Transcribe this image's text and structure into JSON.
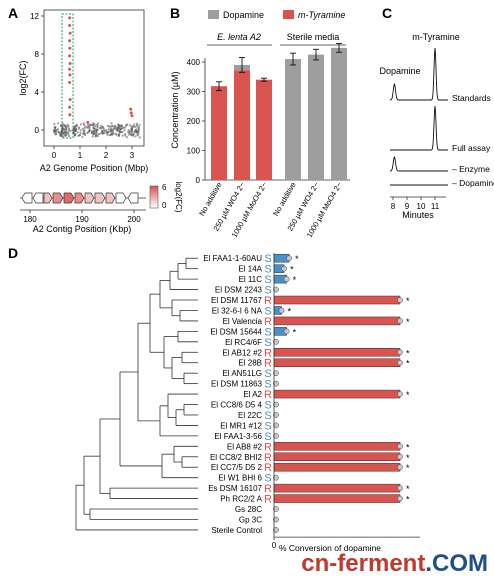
{
  "panels": {
    "a": "A",
    "b": "B",
    "c": "C",
    "d": "D"
  },
  "panel_a": {
    "ylabel": "log2(FC)",
    "xlabel": "A2 Genome Position (Mbp)",
    "yticks": [
      "0",
      "4",
      "8",
      "12"
    ],
    "xticks": [
      "0",
      "1",
      "2",
      "3"
    ],
    "contig_xlabel": "A2 Contig Position (Kbp)",
    "contig_xticks": [
      "180",
      "190",
      "200"
    ],
    "colorbar_label": "log2(FC)",
    "colorbar_ticks": [
      "0",
      "6"
    ],
    "colors": {
      "hit": "#d9534f",
      "background": "#555555",
      "highlight_box": "#3cb371"
    }
  },
  "panel_b": {
    "legend": [
      "Dopamine",
      "m-Tyramine"
    ],
    "group_labels": [
      "E. lenta A2",
      "Sterile media"
    ],
    "ylabel": "Concentration (µM)",
    "colors": {
      "dopamine": "#9e9e9e",
      "mtyramine": "#d9534f"
    },
    "chart_data": {
      "type": "bar",
      "categories": [
        "No additive",
        "250 µM WO4 2−",
        "1000 µM MoO4 2−",
        "No additive",
        "250 µM WO4 2−",
        "1000 µM MoO4 2−"
      ],
      "series": [
        {
          "name": "Dopamine",
          "values": [
            0,
            18,
            0,
            410,
            425,
            448
          ]
        },
        {
          "name": "m-Tyramine",
          "values": [
            318,
            372,
            340,
            0,
            0,
            0
          ]
        }
      ],
      "errors": [
        15,
        25,
        5,
        20,
        18,
        15
      ],
      "ylim": [
        0,
        400
      ],
      "yticks": [
        0,
        100,
        200,
        300,
        400
      ]
    }
  },
  "panel_c": {
    "peak_labels": [
      "Dopamine",
      "m-Tyramine"
    ],
    "traces": [
      "Standards",
      "Full assay",
      "– Enzyme",
      "– Dopamine"
    ],
    "xlabel": "Minutes",
    "xticks": [
      "8",
      "9",
      "10",
      "11"
    ]
  },
  "panel_d": {
    "xlabel": "% Conversion of dopamine",
    "xtick_zero": "0",
    "colors": {
      "R": "#d9534f",
      "S": "#4a90c8",
      "bar_R": "#d9534f",
      "bar_S": "#4a90c8"
    },
    "chart_data": {
      "type": "bar",
      "orientation": "horizontal",
      "xlim": [
        0,
        100
      ],
      "strains": [
        {
          "name": "El FAA1-1-60AU",
          "pheno": "S",
          "value": 12,
          "sig": "*"
        },
        {
          "name": "El 14A",
          "pheno": "S",
          "value": 8,
          "sig": "*"
        },
        {
          "name": "El 11C",
          "pheno": "S",
          "value": 10,
          "sig": "*"
        },
        {
          "name": "El DSM 2243",
          "pheno": "S",
          "value": 0,
          "sig": ""
        },
        {
          "name": "El DSM 11767",
          "pheno": "R",
          "value": 100,
          "sig": "*"
        },
        {
          "name": "El 32-6-I 6 NA",
          "pheno": "S",
          "value": 6,
          "sig": "*"
        },
        {
          "name": "El Valencia",
          "pheno": "R",
          "value": 100,
          "sig": "*"
        },
        {
          "name": "El DSM 15644",
          "pheno": "S",
          "value": 10,
          "sig": "*"
        },
        {
          "name": "El RC4/6F",
          "pheno": "S",
          "value": 0,
          "sig": ""
        },
        {
          "name": "El AB12 #2",
          "pheno": "R",
          "value": 100,
          "sig": "*"
        },
        {
          "name": "El 28B",
          "pheno": "R",
          "value": 100,
          "sig": "*"
        },
        {
          "name": "El AN51LG",
          "pheno": "S",
          "value": 0,
          "sig": ""
        },
        {
          "name": "El DSM 11863",
          "pheno": "S",
          "value": 0,
          "sig": ""
        },
        {
          "name": "El A2",
          "pheno": "R",
          "value": 100,
          "sig": "*"
        },
        {
          "name": "El CC8/6 D5 4",
          "pheno": "S",
          "value": 0,
          "sig": ""
        },
        {
          "name": "El 22C",
          "pheno": "S",
          "value": 0,
          "sig": ""
        },
        {
          "name": "El MR1 #12",
          "pheno": "S",
          "value": 0,
          "sig": ""
        },
        {
          "name": "El FAA1-3-56",
          "pheno": "S",
          "value": 0,
          "sig": ""
        },
        {
          "name": "El AB8 #2",
          "pheno": "R",
          "value": 100,
          "sig": "*"
        },
        {
          "name": "El CC8/2 BHI2",
          "pheno": "R",
          "value": 100,
          "sig": "*"
        },
        {
          "name": "El CC7/5 D5 2",
          "pheno": "R",
          "value": 100,
          "sig": "*"
        },
        {
          "name": "El W1 BHI 6",
          "pheno": "S",
          "value": 0,
          "sig": ""
        },
        {
          "name": "Es DSM 16107",
          "pheno": "R",
          "value": 100,
          "sig": "*"
        },
        {
          "name": "Ph RC2/2 A",
          "pheno": "R",
          "value": 100,
          "sig": "*"
        },
        {
          "name": "Gs 28C",
          "pheno": "",
          "value": 0,
          "sig": ""
        },
        {
          "name": "Gp 3C",
          "pheno": "",
          "value": 0,
          "sig": ""
        },
        {
          "name": "Sterile Control",
          "pheno": "",
          "value": 0,
          "sig": ""
        }
      ]
    }
  },
  "watermark": {
    "part1": "cn-ferment",
    "part2": ".COM"
  }
}
